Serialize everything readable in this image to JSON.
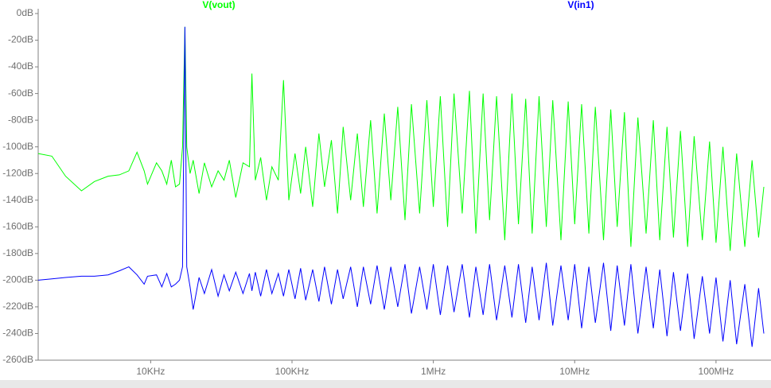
{
  "chart_data": {
    "type": "line",
    "xscale": "log",
    "grid": false,
    "xlim": [
      1600,
      218000000
    ],
    "ylim": [
      -260,
      0
    ],
    "xticks": [
      {
        "value": 10000,
        "label": "10KHz"
      },
      {
        "value": 100000,
        "label": "100KHz"
      },
      {
        "value": 1000000,
        "label": "1MHz"
      },
      {
        "value": 10000000,
        "label": "10MHz"
      },
      {
        "value": 100000000,
        "label": "100MHz"
      }
    ],
    "yticks": [
      {
        "value": 0,
        "label": "0dB"
      },
      {
        "value": -20,
        "label": "-20dB"
      },
      {
        "value": -40,
        "label": "-40dB"
      },
      {
        "value": -60,
        "label": "-60dB"
      },
      {
        "value": -80,
        "label": "-80dB"
      },
      {
        "value": -100,
        "label": "-100dB"
      },
      {
        "value": -120,
        "label": "-120dB"
      },
      {
        "value": -140,
        "label": "-140dB"
      },
      {
        "value": -160,
        "label": "-160dB"
      },
      {
        "value": -180,
        "label": "-180dB"
      },
      {
        "value": -200,
        "label": "-200dB"
      },
      {
        "value": -220,
        "label": "-220dB"
      },
      {
        "value": -240,
        "label": "-240dB"
      },
      {
        "value": -260,
        "label": "-260dB"
      }
    ],
    "x": [
      1600,
      2000,
      2500,
      3240,
      4000,
      5000,
      6000,
      7000,
      8000,
      9000,
      9500,
      11000,
      12000,
      13000,
      14000,
      15000,
      16000,
      16800,
      17460,
      18000,
      19000,
      20000,
      22000,
      24000,
      27000,
      30000,
      33000,
      36000,
      40000,
      45000,
      50000,
      52000,
      55000,
      60000,
      66000,
      72000,
      80000,
      87000,
      95000,
      105000,
      115000,
      125000,
      140000,
      155000,
      170000,
      190000,
      210000,
      230000,
      260000,
      290000,
      320000,
      360000,
      400000,
      450000,
      500000,
      560000,
      630000,
      700000,
      800000,
      900000,
      1000000,
      1120000,
      1260000,
      1400000,
      1600000,
      1800000,
      2000000,
      2250000,
      2500000,
      2800000,
      3200000,
      3600000,
      4000000,
      4500000,
      5000000,
      5600000,
      6300000,
      7000000,
      8000000,
      9000000,
      10000000,
      11200000,
      12600000,
      14000000,
      16000000,
      18000000,
      20000000,
      22500000,
      25000000,
      28000000,
      32000000,
      36000000,
      40000000,
      45000000,
      50000000,
      56000000,
      63000000,
      70000000,
      80000000,
      90000000,
      100000000,
      112000000,
      126000000,
      140000000,
      160000000,
      180000000,
      200000000,
      218000000
    ],
    "series": [
      {
        "name": "V(vout)",
        "color": "#00ff00",
        "values": [
          -105,
          -107,
          -122,
          -133,
          -126,
          -122,
          -121,
          -118,
          -104,
          -118,
          -128,
          -112,
          -118,
          -128,
          -110,
          -130,
          -128,
          -100,
          -10,
          -100,
          -120,
          -110,
          -135,
          -112,
          -130,
          -118,
          -125,
          -110,
          -138,
          -112,
          -115,
          -45,
          -125,
          -108,
          -140,
          -115,
          -125,
          -50,
          -140,
          -105,
          -135,
          -100,
          -145,
          -90,
          -130,
          -95,
          -150,
          -85,
          -140,
          -90,
          -145,
          -80,
          -150,
          -75,
          -140,
          -70,
          -155,
          -68,
          -150,
          -65,
          -145,
          -62,
          -160,
          -60,
          -150,
          -58,
          -165,
          -60,
          -155,
          -62,
          -170,
          -60,
          -158,
          -64,
          -165,
          -62,
          -160,
          -65,
          -170,
          -66,
          -158,
          -68,
          -165,
          -70,
          -170,
          -72,
          -160,
          -74,
          -175,
          -78,
          -165,
          -80,
          -170,
          -85,
          -168,
          -88,
          -175,
          -92,
          -170,
          -96,
          -172,
          -100,
          -178,
          -105,
          -175,
          -110,
          -168,
          -130
        ]
      },
      {
        "name": "V(in1)",
        "color": "#0000ff",
        "values": [
          -200,
          -199,
          -198,
          -197,
          -197,
          -196,
          -193,
          -190,
          -196,
          -203,
          -197,
          -196,
          -205,
          -195,
          -205,
          -203,
          -200,
          -190,
          -10,
          -190,
          -205,
          -222,
          -198,
          -210,
          -192,
          -212,
          -196,
          -208,
          -194,
          -210,
          -195,
          -208,
          -194,
          -212,
          -192,
          -210,
          -195,
          -212,
          -192,
          -214,
          -191,
          -215,
          -192,
          -216,
          -190,
          -218,
          -192,
          -214,
          -190,
          -220,
          -190,
          -218,
          -189,
          -222,
          -190,
          -220,
          -188,
          -225,
          -190,
          -222,
          -188,
          -226,
          -189,
          -224,
          -188,
          -228,
          -190,
          -226,
          -188,
          -230,
          -189,
          -228,
          -188,
          -232,
          -190,
          -230,
          -187,
          -234,
          -189,
          -230,
          -188,
          -236,
          -190,
          -232,
          -187,
          -238,
          -189,
          -234,
          -188,
          -240,
          -190,
          -236,
          -192,
          -242,
          -194,
          -238,
          -195,
          -244,
          -197,
          -240,
          -198,
          -246,
          -200,
          -248,
          -203,
          -250,
          -206,
          -240
        ]
      }
    ]
  }
}
